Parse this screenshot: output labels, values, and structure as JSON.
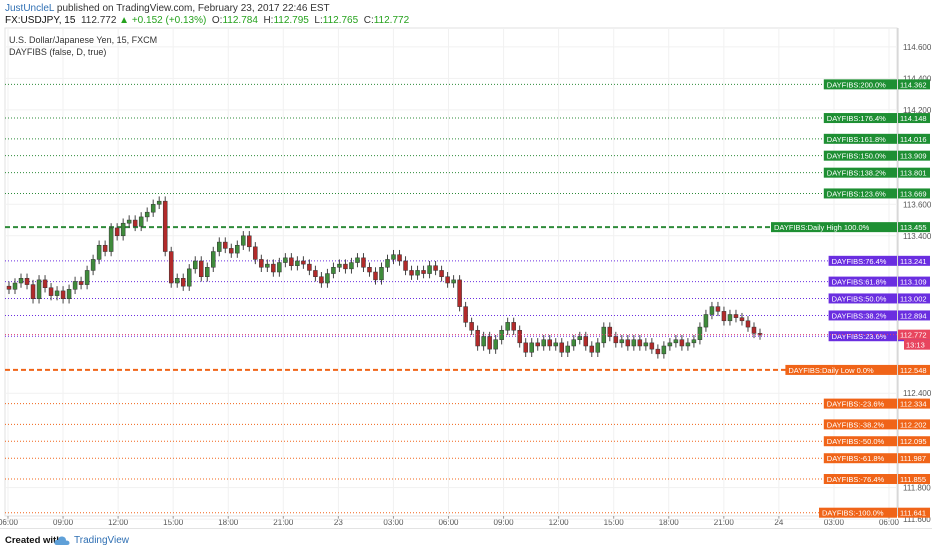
{
  "header": {
    "user": "JustUncleL",
    "published": " published on TradingView.com, February 23, 2017 22:46 EST",
    "symbol": "FX:USDJPY, 15",
    "last": "112.772",
    "change_arrow": "▲",
    "change": "+0.152 (+0.13%)",
    "o_label": "O:",
    "o_value": "112.784",
    "h_label": "H:",
    "h_value": "112.795",
    "l_label": "L:",
    "l_value": "112.765",
    "c_label": "C:",
    "c_value": "112.772"
  },
  "legend": {
    "title": "U.S. Dollar/Japanese Yen, 15, FXCM",
    "indicator": "DAYFIBS (false, D, true)"
  },
  "footer": {
    "created_with": "Created with",
    "brand": "TradingView"
  },
  "chart_data": {
    "type": "candlestick",
    "title": "U.S. Dollar/Japanese Yen, 15, FXCM",
    "ylim": [
      111.62,
      114.72
    ],
    "grid": true,
    "y_ticks": [
      "114.600",
      "114.400",
      "114.200",
      "113.600",
      "113.400",
      "112.400",
      "111.800",
      "111.600"
    ],
    "x_ticks": [
      "06:00",
      "09:00",
      "12:00",
      "15:00",
      "18:00",
      "21:00",
      "23",
      "03:00",
      "06:00",
      "09:00",
      "12:00",
      "15:00",
      "18:00",
      "21:00",
      "24",
      "03:00",
      "06:00"
    ],
    "fib_levels": [
      {
        "label": "DAYFIBS:200.0%",
        "value": 114.362,
        "group": "high"
      },
      {
        "label": "DAYFIBS:176.4%",
        "value": 114.148,
        "group": "high"
      },
      {
        "label": "DAYFIBS:161.8%",
        "value": 114.016,
        "group": "high"
      },
      {
        "label": "DAYFIBS:150.0%",
        "value": 113.909,
        "group": "high"
      },
      {
        "label": "DAYFIBS:138.2%",
        "value": 113.801,
        "group": "high"
      },
      {
        "label": "DAYFIBS:123.6%",
        "value": 113.669,
        "group": "high"
      },
      {
        "label": "DAYFIBS:Daily High 100.0%",
        "value": 113.455,
        "group": "high",
        "bold": true
      },
      {
        "label": "DAYFIBS:76.4%",
        "value": 113.241,
        "group": "mid"
      },
      {
        "label": "DAYFIBS:61.8%",
        "value": 113.109,
        "group": "mid"
      },
      {
        "label": "DAYFIBS:50.0%",
        "value": 113.002,
        "group": "mid"
      },
      {
        "label": "DAYFIBS:38.2%",
        "value": 112.894,
        "group": "mid"
      },
      {
        "label": "DAYFIBS:23.6%",
        "value": 112.762,
        "group": "mid"
      },
      {
        "label": "DAYFIBS:Daily Low 0.0%",
        "value": 112.548,
        "group": "low",
        "bold": true
      },
      {
        "label": "DAYFIBS:-23.6%",
        "value": 112.334,
        "group": "low"
      },
      {
        "label": "DAYFIBS:-38.2%",
        "value": 112.202,
        "group": "low"
      },
      {
        "label": "DAYFIBS:-50.0%",
        "value": 112.095,
        "group": "low"
      },
      {
        "label": "DAYFIBS:-61.8%",
        "value": 111.987,
        "group": "low"
      },
      {
        "label": "DAYFIBS:-76.4%",
        "value": 111.855,
        "group": "low"
      },
      {
        "label": "DAYFIBS:-100.0%",
        "value": 111.641,
        "group": "low"
      }
    ],
    "last_price": {
      "value": 112.772,
      "label": "112.772"
    },
    "countdown": {
      "label": "13:13"
    },
    "series": [
      {
        "name": "USDJPY",
        "close": [
          113.06,
          113.1,
          113.13,
          113.09,
          113.0,
          113.12,
          113.07,
          113.02,
          113.05,
          113.0,
          113.06,
          113.11,
          113.09,
          113.18,
          113.25,
          113.34,
          113.3,
          113.45,
          113.4,
          113.48,
          113.5,
          113.46,
          113.52,
          113.55,
          113.6,
          113.62,
          113.3,
          113.1,
          113.13,
          113.08,
          113.19,
          113.24,
          113.14,
          113.2,
          113.3,
          113.36,
          113.32,
          113.29,
          113.34,
          113.4,
          113.33,
          113.25,
          113.2,
          113.22,
          113.17,
          113.23,
          113.26,
          113.21,
          113.24,
          113.22,
          113.18,
          113.14,
          113.1,
          113.16,
          113.2,
          113.22,
          113.19,
          113.23,
          113.26,
          113.2,
          113.17,
          113.12,
          113.2,
          113.25,
          113.28,
          113.24,
          113.18,
          113.15,
          113.18,
          113.16,
          113.21,
          113.18,
          113.14,
          113.1,
          113.12,
          112.95,
          112.85,
          112.8,
          112.7,
          112.76,
          112.68,
          112.74,
          112.8,
          112.85,
          112.8,
          112.72,
          112.66,
          112.72,
          112.7,
          112.74,
          112.7,
          112.72,
          112.66,
          112.7,
          112.74,
          112.76,
          112.7,
          112.66,
          112.72,
          112.82,
          112.76,
          112.72,
          112.74,
          112.7,
          112.74,
          112.7,
          112.72,
          112.68,
          112.65,
          112.7,
          112.72,
          112.74,
          112.7,
          112.72,
          112.74,
          112.82,
          112.9,
          112.95,
          112.92,
          112.86,
          112.9,
          112.88,
          112.86,
          112.82,
          112.78,
          112.77
        ],
        "open_ref": 113.08,
        "wick": 0.03
      }
    ]
  }
}
